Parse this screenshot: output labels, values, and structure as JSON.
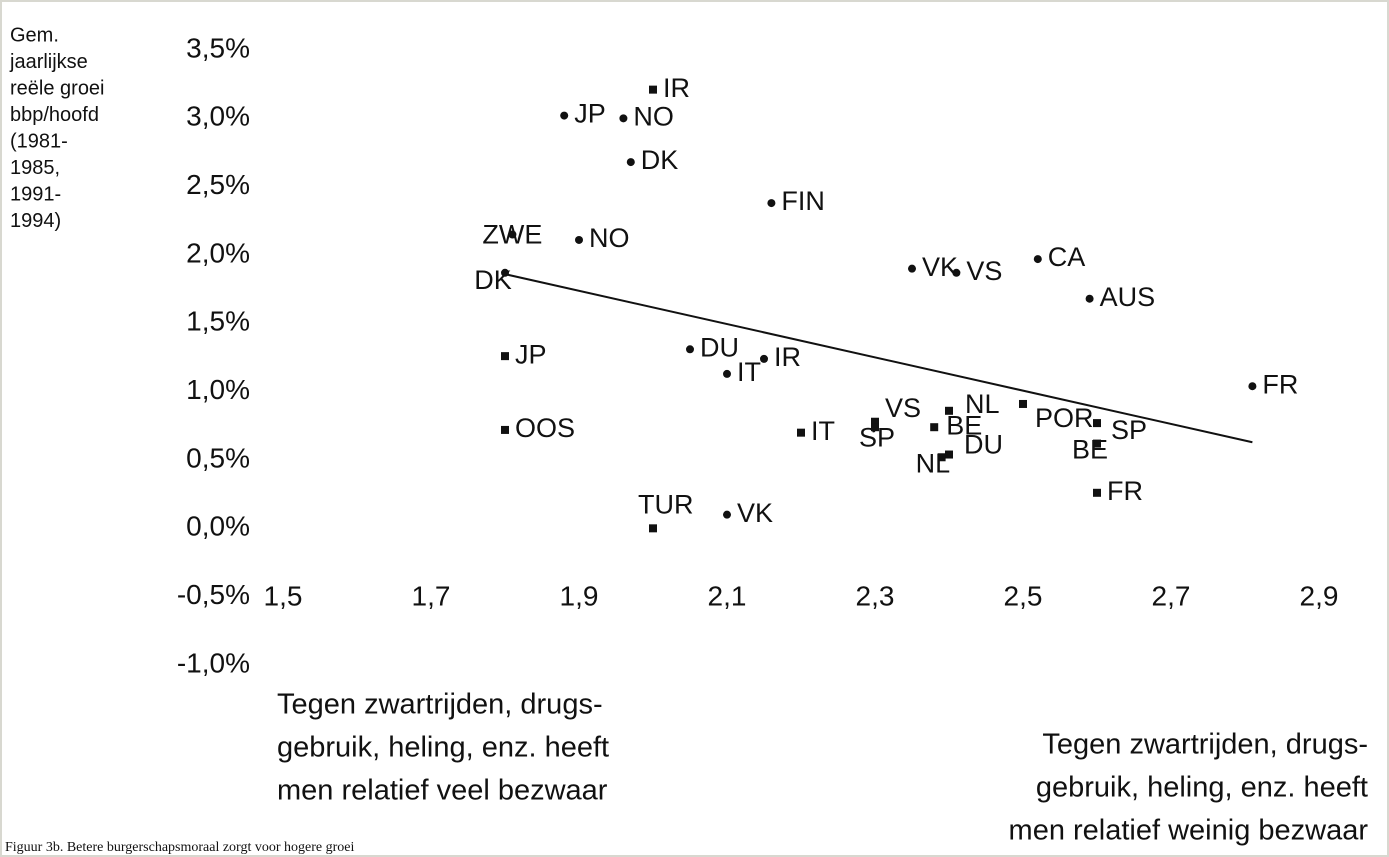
{
  "chart_data": {
    "type": "scatter",
    "y_label_lines": [
      "Gem.",
      "jaarlijkse",
      "reële groei",
      "bbp/hoofd",
      "(1981-",
      "1985,",
      "1991-",
      "1994)"
    ],
    "xlim": [
      1.5,
      2.9
    ],
    "xticks": [
      {
        "value": 1.5,
        "label": "1,5"
      },
      {
        "value": 1.7,
        "label": "1,7"
      },
      {
        "value": 1.9,
        "label": "1,9"
      },
      {
        "value": 2.1,
        "label": "2,1"
      },
      {
        "value": 2.3,
        "label": "2,3"
      },
      {
        "value": 2.5,
        "label": "2,5"
      },
      {
        "value": 2.7,
        "label": "2,7"
      },
      {
        "value": 2.9,
        "label": "2,9"
      }
    ],
    "ylim": [
      -1.0,
      3.5
    ],
    "yticks": [
      {
        "value": 3.5,
        "label": "3,5%"
      },
      {
        "value": 3.0,
        "label": "3,0%"
      },
      {
        "value": 2.5,
        "label": "2,5%"
      },
      {
        "value": 2.0,
        "label": "2,0%"
      },
      {
        "value": 1.5,
        "label": "1,5%"
      },
      {
        "value": 1.0,
        "label": "1,0%"
      },
      {
        "value": 0.5,
        "label": "0,5%"
      },
      {
        "value": 0.0,
        "label": "0,0%"
      },
      {
        "value": -0.5,
        "label": "-0,5%"
      },
      {
        "value": -1.0,
        "label": "-1,0%"
      }
    ],
    "series": [
      {
        "marker": "circle",
        "color": "#111111",
        "labels": [
          "JP",
          "NO",
          "DK",
          "FIN",
          "NO",
          "ZWE",
          "DK",
          "VK",
          "VS",
          "CA",
          "AUS",
          "FR",
          "DU",
          "IR",
          "IT",
          "VK"
        ],
        "x": [
          1.88,
          1.96,
          1.97,
          2.16,
          1.9,
          1.81,
          1.8,
          2.35,
          2.41,
          2.52,
          2.59,
          2.81,
          2.05,
          2.15,
          2.1,
          2.1
        ],
        "y": [
          3.02,
          3.0,
          2.68,
          2.38,
          2.11,
          2.15,
          1.87,
          1.9,
          1.87,
          1.97,
          1.68,
          1.04,
          1.31,
          1.24,
          1.13,
          0.1
        ]
      },
      {
        "marker": "square",
        "color": "#111111",
        "labels": [
          "IR",
          "JP",
          "OOS",
          "TUR",
          "IT",
          "VS",
          "SP",
          "BE",
          "NL",
          "DU",
          "NL",
          "POR",
          "SP",
          "BE",
          "FR"
        ],
        "x": [
          2.0,
          1.8,
          1.8,
          2.0,
          2.2,
          2.3,
          2.3,
          2.38,
          2.4,
          2.4,
          2.39,
          2.5,
          2.6,
          2.6,
          2.6
        ],
        "y": [
          3.21,
          1.26,
          0.72,
          0.0,
          0.7,
          0.78,
          0.74,
          0.74,
          0.86,
          0.54,
          0.52,
          0.91,
          0.77,
          0.62,
          0.26
        ]
      }
    ],
    "trendline": {
      "x": [
        1.8,
        2.81
      ],
      "y": [
        1.86,
        0.63
      ]
    },
    "annotation_left": [
      "Tegen zwartrijden, drugs-",
      "gebruik, heling, enz. heeft",
      "men relatief veel bezwaar"
    ],
    "annotation_right": [
      "Tegen zwartrijden, drugs-",
      "gebruik, heling, enz. heeft",
      "men relatief weinig bezwaar"
    ],
    "caption": "Figuur 3b. Betere burgerschapsmoraal zorgt voor hogere groei"
  }
}
